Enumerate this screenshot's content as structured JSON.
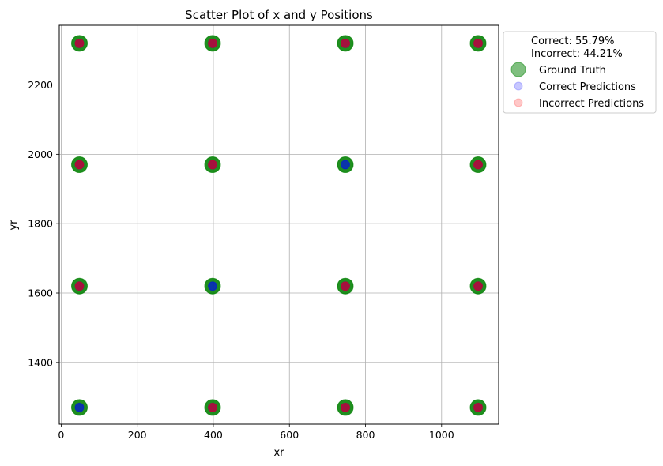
{
  "chart_data": {
    "type": "scatter",
    "title": "Scatter Plot of x and y Positions",
    "xlabel": "xr",
    "ylabel": "yr",
    "xlim": [
      -5,
      1150
    ],
    "ylim": [
      1222,
      2372
    ],
    "xticks": [
      0,
      200,
      400,
      600,
      800,
      1000
    ],
    "yticks": [
      1400,
      1600,
      1800,
      2000,
      2200
    ],
    "grid": true,
    "legend": {
      "placement": "outside-top-right",
      "stats": [
        "Correct: 55.79%",
        "Incorrect: 44.21%"
      ],
      "entries": [
        "Ground Truth",
        "Correct Predictions",
        "Incorrect Predictions"
      ]
    },
    "colors": {
      "ground_truth": "#008000",
      "correct": "#0000ff",
      "incorrect": "#ff0000"
    },
    "series": [
      {
        "name": "Ground Truth",
        "points": [
          [
            48,
            2320
          ],
          [
            398,
            2320
          ],
          [
            747,
            2320
          ],
          [
            1096,
            2320
          ],
          [
            48,
            1970
          ],
          [
            398,
            1970
          ],
          [
            747,
            1970
          ],
          [
            1096,
            1970
          ],
          [
            48,
            1620
          ],
          [
            398,
            1620
          ],
          [
            747,
            1620
          ],
          [
            1096,
            1620
          ],
          [
            48,
            1270
          ],
          [
            398,
            1270
          ],
          [
            747,
            1270
          ],
          [
            1096,
            1270
          ]
        ]
      },
      {
        "name": "Correct Predictions",
        "points": [
          [
            48,
            2320
          ],
          [
            398,
            2320
          ],
          [
            747,
            2320
          ],
          [
            1096,
            2320
          ],
          [
            48,
            1970
          ],
          [
            398,
            1970
          ],
          [
            747,
            1970
          ],
          [
            1096,
            1970
          ],
          [
            48,
            1620
          ],
          [
            398,
            1620
          ],
          [
            747,
            1620
          ],
          [
            1096,
            1620
          ],
          [
            48,
            1270
          ],
          [
            398,
            1270
          ],
          [
            747,
            1270
          ],
          [
            1096,
            1270
          ]
        ]
      },
      {
        "name": "Incorrect Predictions",
        "points": [
          [
            48,
            2320
          ],
          [
            398,
            2320
          ],
          [
            747,
            2320
          ],
          [
            1096,
            2320
          ],
          [
            48,
            1970
          ],
          [
            398,
            1970
          ],
          [
            1096,
            1970
          ],
          [
            48,
            1620
          ],
          [
            747,
            1620
          ],
          [
            1096,
            1620
          ],
          [
            398,
            1270
          ],
          [
            747,
            1270
          ],
          [
            1096,
            1270
          ]
        ]
      }
    ]
  }
}
